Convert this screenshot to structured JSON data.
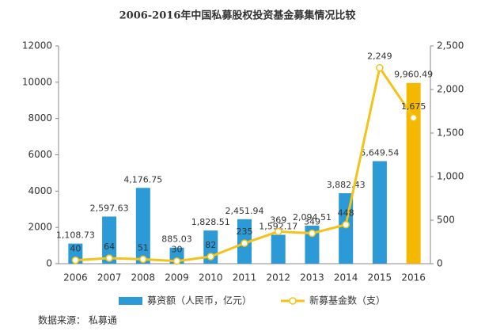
{
  "chart_data": {
    "type": "bar-line",
    "title": "2006-2016年中国私募股权投资基金募集情况比较",
    "source": "数据来源： 私募通",
    "categories": [
      "2006",
      "2007",
      "2008",
      "2009",
      "2010",
      "2011",
      "2012",
      "2013",
      "2014",
      "2015",
      "2016"
    ],
    "series": [
      {
        "name": "募资额（人民币，亿元）",
        "color": "#2b9ad6",
        "colors": [
          "#2b9ad6",
          "#2b9ad6",
          "#2b9ad6",
          "#2b9ad6",
          "#2b9ad6",
          "#2b9ad6",
          "#2b9ad6",
          "#2b9ad6",
          "#2b9ad6",
          "#2b9ad6",
          "#f5b800"
        ],
        "values": [
          1108.73,
          2597.63,
          4176.75,
          885.03,
          1828.51,
          2451.94,
          1592.17,
          2094.51,
          3882.43,
          5649.54,
          9960.49
        ],
        "value_labels": [
          "1,108.73",
          "2,597.63",
          "4,176.75",
          "885.03",
          "1,828.51",
          "2,451.94",
          "1,592.17",
          "2,094.51",
          "3,882.43",
          "5,649.54",
          "9,960.49"
        ]
      },
      {
        "name": "新募基金数（支）",
        "color": "#f2c318",
        "axis": "y2",
        "values": [
          40,
          64,
          51,
          30,
          82,
          235,
          369,
          349,
          448,
          2249,
          1675
        ],
        "value_labels": [
          "40",
          "64",
          "51",
          "30",
          "82",
          "235",
          "369",
          "349",
          "448",
          "2,249",
          "1,675"
        ]
      }
    ],
    "ylim": [
      0,
      12000
    ],
    "yticks": [
      0,
      2000,
      4000,
      6000,
      8000,
      10000,
      12000
    ],
    "y2lim": [
      0,
      2500
    ],
    "y2ticks": [
      0,
      500,
      {
        "value": 1000,
        "label": "1,000"
      },
      {
        "value": 1500,
        "label": "1,500"
      },
      {
        "value": 2000,
        "label": "2,000"
      },
      {
        "value": 2500,
        "label": "2,500"
      }
    ]
  }
}
